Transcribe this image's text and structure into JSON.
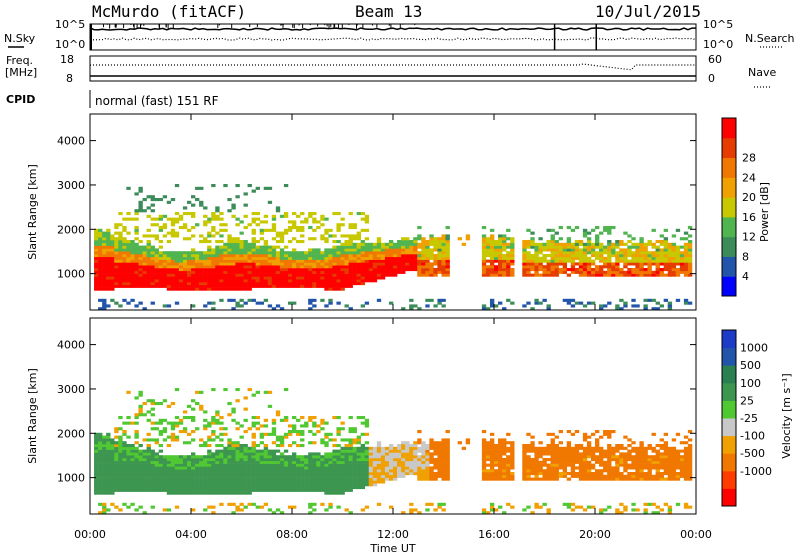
{
  "header": {
    "station": "McMurdo (fitACF)",
    "beam": "Beam 13",
    "date": "10/Jul/2015"
  },
  "status_panel": {
    "nsky_label": "N.Sky",
    "nsky_ticks": [
      "10^5",
      "10^0"
    ],
    "nsearch_label": "N.Search",
    "nsearch_ticks": [
      "10^5",
      "10^0"
    ],
    "freq_label_line1": "Freq.",
    "freq_label_line2": "[MHz]",
    "freq_ticks": [
      "18",
      "8"
    ],
    "nave_label": "Nave",
    "nave_ticks": [
      "60",
      "0"
    ],
    "cpid_label": "CPID",
    "cpid_value": "normal (fast) 151 RF"
  },
  "colors": {
    "power_scale": [
      "#0000ff",
      "#2255aa",
      "#3c8c5a",
      "#50b450",
      "#c8c800",
      "#f0a000",
      "#f07800",
      "#e63c00",
      "#ff0000"
    ],
    "velocity_scale": [
      "#ff0000",
      "#ff3c00",
      "#f07800",
      "#f0a000",
      "#c8c8c8",
      "#50c832",
      "#3c9650",
      "#2a8050",
      "#2255aa",
      "#1c3cc8"
    ]
  },
  "chart_data": [
    {
      "type": "heatmap",
      "name": "power",
      "ylabel": "Slant Range [km]",
      "ylim": [
        180,
        4600
      ],
      "yticks": [
        "1000",
        "2000",
        "3000",
        "4000"
      ],
      "colorbar_label": "Power [dB]",
      "colorbar_ticks": [
        "4",
        "8",
        "12",
        "16",
        "20",
        "24",
        "28"
      ],
      "colorbar_range": [
        0,
        32
      ]
    },
    {
      "type": "heatmap",
      "name": "velocity",
      "ylabel": "Slant Range [km]",
      "ylim": [
        180,
        4600
      ],
      "yticks": [
        "1000",
        "2000",
        "3000",
        "4000"
      ],
      "colorbar_label": "Velocity [m s⁻¹]",
      "colorbar_ticks": [
        "1000",
        "500",
        "100",
        "25",
        "-25",
        "-100",
        "-500",
        "-1000"
      ]
    }
  ],
  "time_axis": {
    "label": "Time UT",
    "ticks": [
      "00:00",
      "04:00",
      "08:00",
      "12:00",
      "16:00",
      "20:00",
      "00:00"
    ],
    "range_hours": [
      0,
      24
    ]
  }
}
